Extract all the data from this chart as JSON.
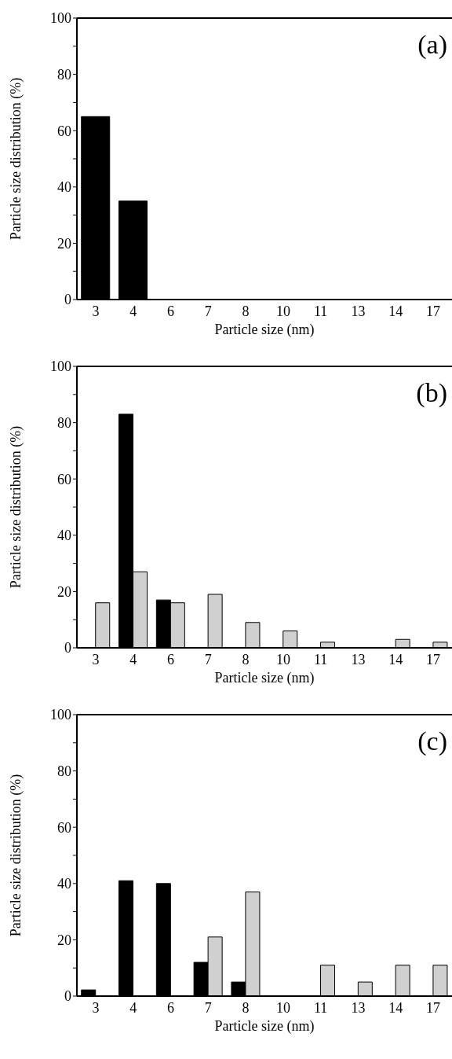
{
  "chart_data": [
    {
      "type": "bar",
      "xlabel": "Particle size (nm)",
      "ylabel": "Particle size distribution (%)",
      "annotations": [
        "(a)"
      ],
      "categories": [
        "3",
        "4",
        "6",
        "7",
        "8",
        "10",
        "11",
        "13",
        "14",
        "17"
      ],
      "series": [
        {
          "color": "#000000",
          "values": [
            65,
            35,
            0,
            0,
            0,
            0,
            0,
            0,
            0,
            0
          ]
        }
      ],
      "ylim": [
        0,
        100
      ],
      "yticks": [
        0,
        {
          "value": 10,
          "label": null
        },
        20,
        {
          "value": 30,
          "label": null
        },
        40,
        {
          "value": 50,
          "label": null
        },
        60,
        {
          "value": 70,
          "label": null
        },
        80,
        {
          "value": 90,
          "label": null
        },
        100
      ],
      "grid": false
    },
    {
      "type": "bar",
      "xlabel": "Particle size (nm)",
      "ylabel": "Particle size distribution (%)",
      "annotations": [
        "(b)"
      ],
      "categories": [
        "3",
        "4",
        "6",
        "7",
        "8",
        "10",
        "11",
        "13",
        "14",
        "17"
      ],
      "series": [
        {
          "color": "#000000",
          "values": [
            0,
            83,
            17,
            0,
            0,
            0,
            0,
            0,
            0,
            0
          ]
        },
        {
          "color": "#d0d0d0",
          "values": [
            16,
            27,
            16,
            19,
            9,
            6,
            2,
            0,
            3,
            2
          ]
        }
      ],
      "ylim": [
        0,
        100
      ],
      "yticks": [
        0,
        {
          "value": 10,
          "label": null
        },
        20,
        {
          "value": 30,
          "label": null
        },
        40,
        {
          "value": 50,
          "label": null
        },
        60,
        {
          "value": 70,
          "label": null
        },
        80,
        {
          "value": 90,
          "label": null
        },
        100
      ],
      "grid": false
    },
    {
      "type": "bar",
      "xlabel": "Particle size (nm)",
      "ylabel": "Particle size distribution (%)",
      "annotations": [
        "(c)"
      ],
      "categories": [
        "3",
        "4",
        "6",
        "7",
        "8",
        "10",
        "11",
        "13",
        "14",
        "17"
      ],
      "series": [
        {
          "color": "#000000",
          "values": [
            2.2,
            41,
            40,
            12,
            5,
            0,
            0,
            0,
            0,
            0
          ]
        },
        {
          "color": "#d0d0d0",
          "values": [
            0,
            0,
            0,
            21,
            37,
            0,
            11,
            5,
            11,
            11
          ]
        }
      ],
      "ylim": [
        0,
        100
      ],
      "yticks": [
        0,
        {
          "value": 10,
          "label": null
        },
        20,
        {
          "value": 30,
          "label": null
        },
        40,
        {
          "value": 50,
          "label": null
        },
        60,
        {
          "value": 70,
          "label": null
        },
        80,
        {
          "value": 90,
          "label": null
        },
        100
      ],
      "grid": false
    }
  ]
}
